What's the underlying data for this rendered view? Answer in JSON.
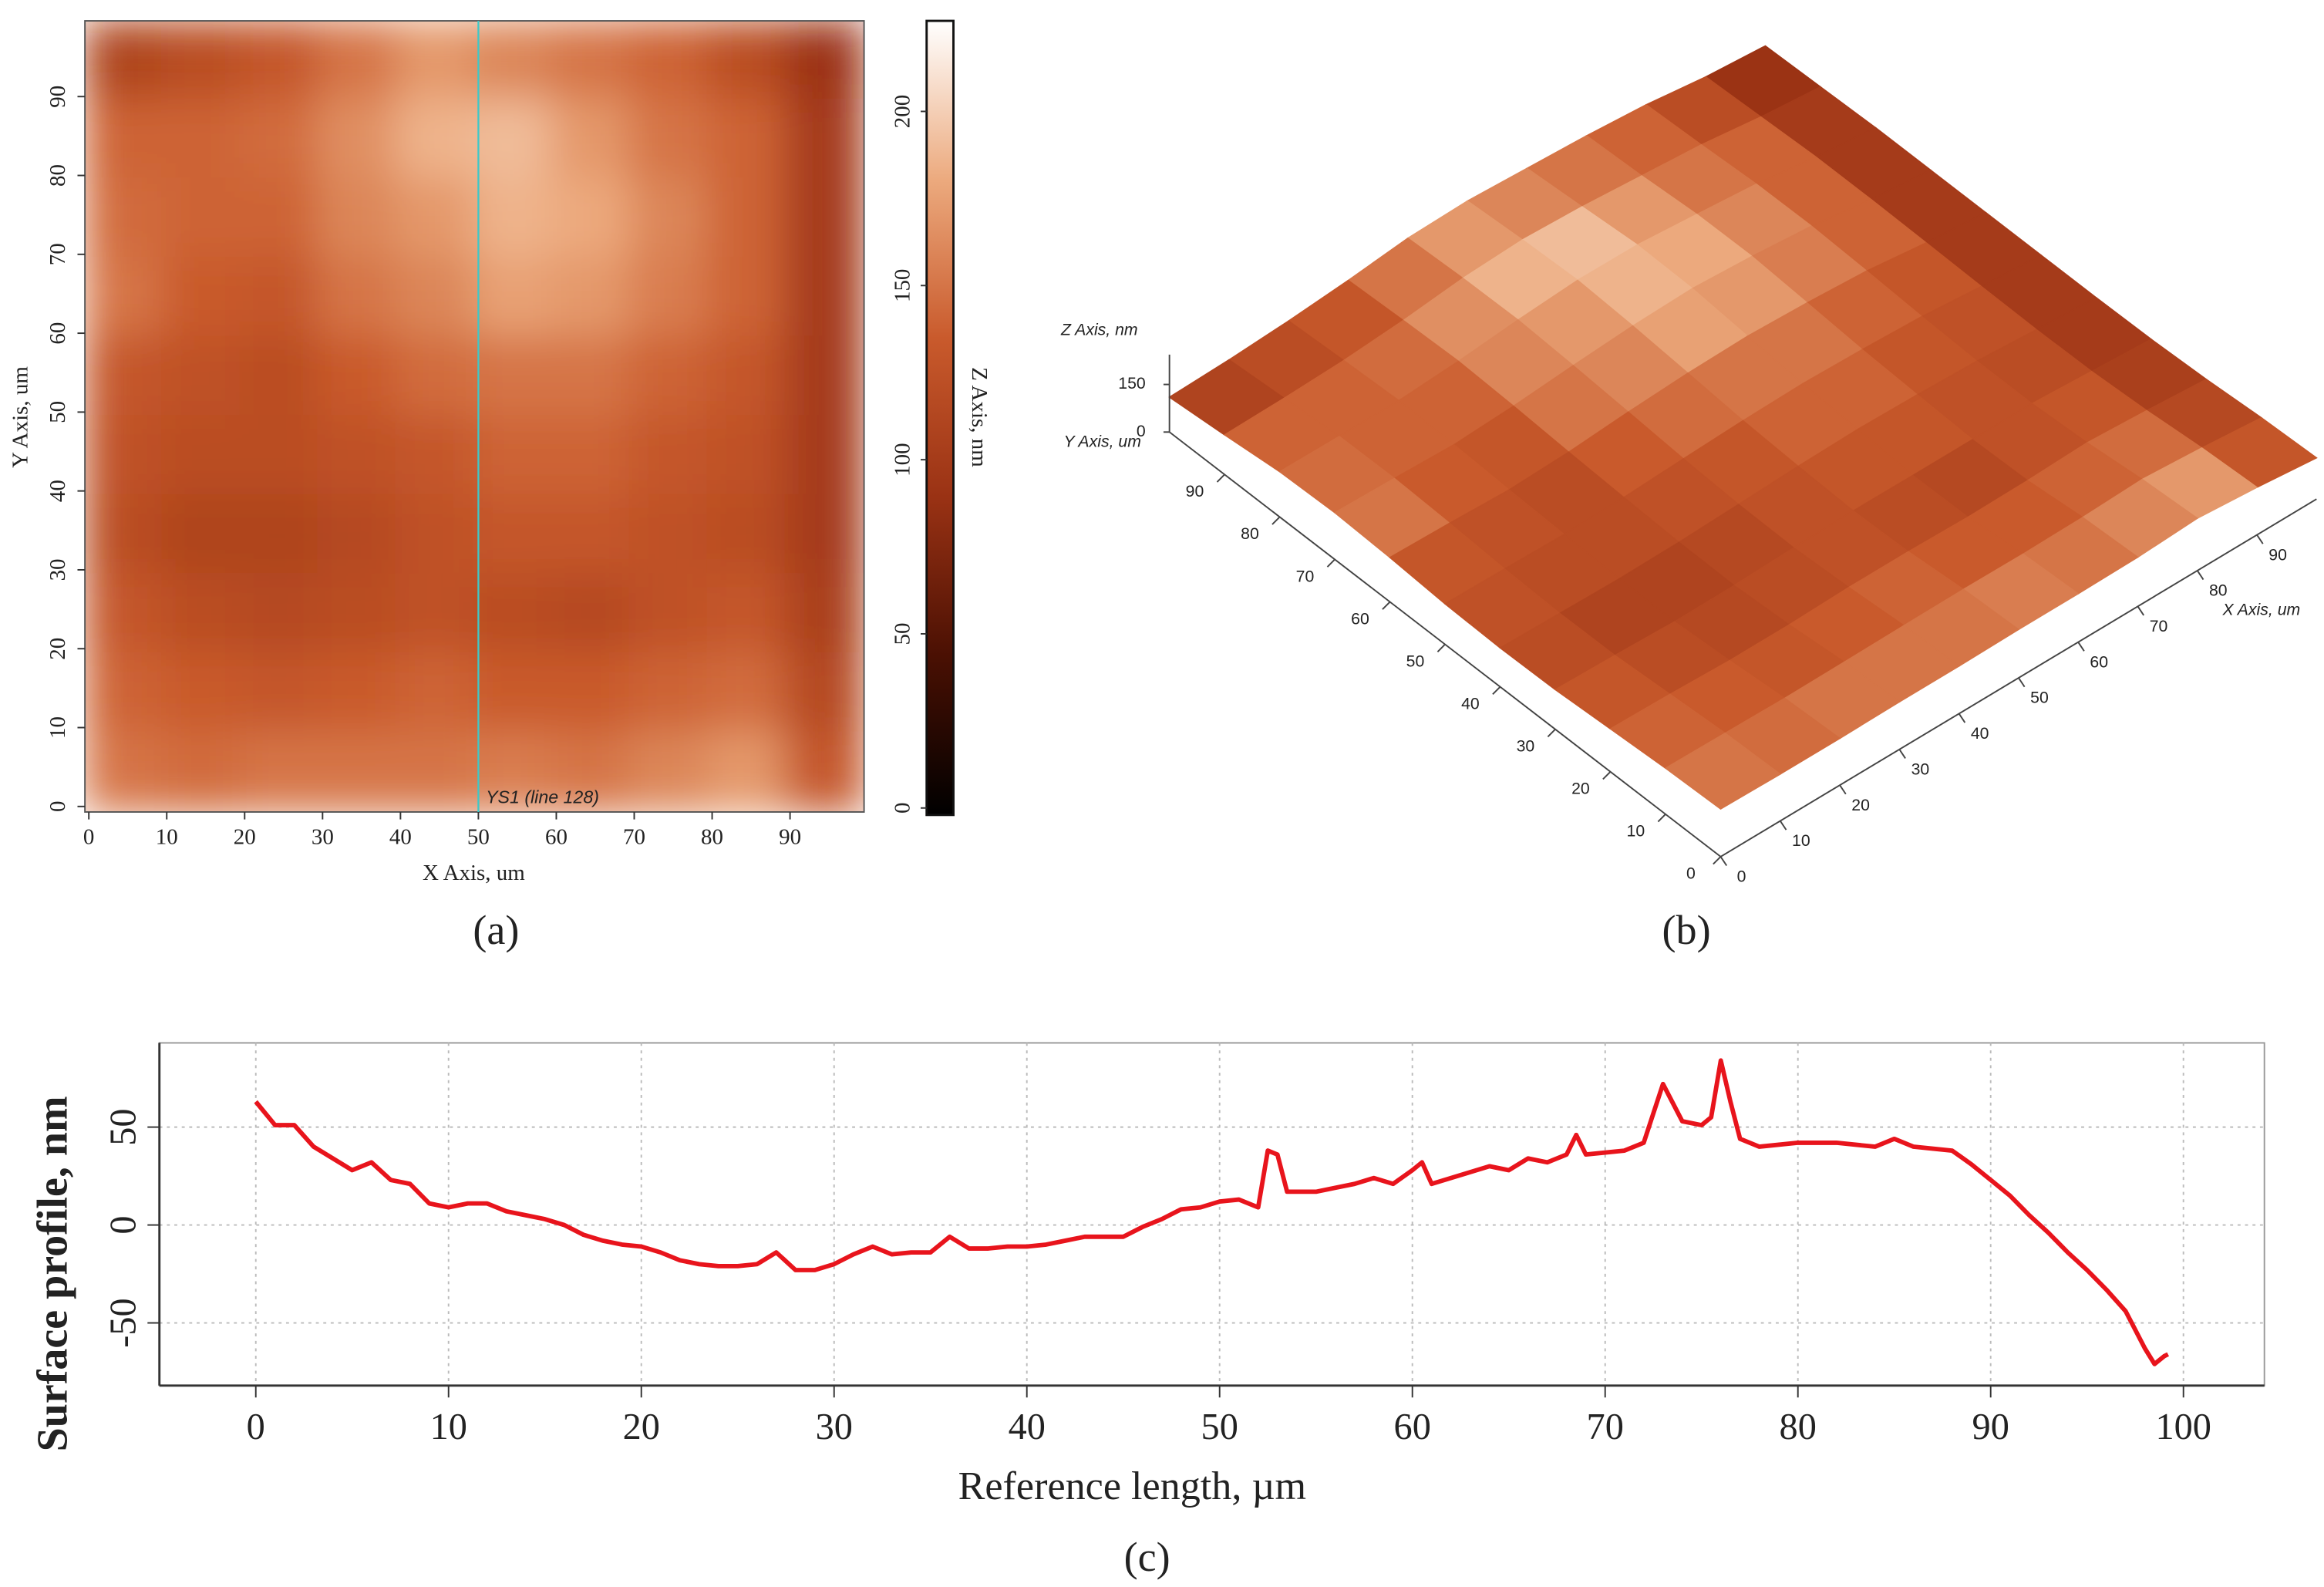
{
  "chart_data": [
    {
      "type": "heatmap",
      "xlabel": "X Axis, um",
      "ylabel": "Y Axis, um",
      "xlim": [
        -0.5,
        99.5
      ],
      "ylim": [
        -0.7,
        99.6
      ],
      "xticks": [
        0,
        10,
        20,
        30,
        40,
        50,
        60,
        70,
        80,
        90
      ],
      "yticks": [
        0,
        10,
        20,
        30,
        40,
        50,
        60,
        70,
        80,
        90
      ],
      "z": [
        [
          110,
          120,
          130,
          150,
          170,
          160,
          150,
          140,
          120,
          90
        ],
        [
          140,
          140,
          145,
          165,
          185,
          190,
          170,
          150,
          140,
          100
        ],
        [
          145,
          140,
          140,
          160,
          170,
          185,
          180,
          160,
          140,
          100
        ],
        [
          150,
          135,
          130,
          150,
          160,
          175,
          170,
          155,
          140,
          100
        ],
        [
          130,
          125,
          120,
          135,
          145,
          150,
          150,
          140,
          130,
          100
        ],
        [
          125,
          120,
          120,
          125,
          130,
          140,
          140,
          130,
          125,
          100
        ],
        [
          120,
          110,
          110,
          115,
          125,
          130,
          130,
          125,
          120,
          100
        ],
        [
          130,
          120,
          115,
          120,
          125,
          120,
          115,
          125,
          130,
          105
        ],
        [
          140,
          135,
          130,
          135,
          140,
          135,
          135,
          140,
          145,
          115
        ],
        [
          150,
          145,
          150,
          150,
          150,
          155,
          150,
          160,
          170,
          130
        ]
      ],
      "colorbar_label": "Z Axis, nm",
      "zlim": [
        -2,
        226
      ],
      "zticks": [
        0,
        50,
        100,
        150,
        200
      ],
      "colormap": [
        "#000000",
        "#4a1003",
        "#9a3214",
        "#c95a2c",
        "#ecaa7e",
        "#ffffff"
      ],
      "cursor_x": 50,
      "cursor_color": "#3ec8c8",
      "annotation": "YS1 (line 128)",
      "panel_label": "(a)"
    },
    {
      "type": "surface3d",
      "xlabel": "X Axis, um",
      "ylabel": "Y Axis, um",
      "zlabel": "Z Axis, nm",
      "xlim": [
        0,
        100
      ],
      "ylim": [
        0,
        100
      ],
      "xticks": [
        0,
        10,
        20,
        30,
        40,
        50,
        60,
        70,
        80,
        90
      ],
      "yticks": [
        0,
        10,
        20,
        30,
        40,
        50,
        60,
        70,
        80,
        90
      ],
      "zticks": [
        0,
        150
      ],
      "panel_label": "(b)"
    },
    {
      "type": "line",
      "xlabel": "Reference length, µm",
      "ylabel": "Surface profile, nm",
      "x": [
        0,
        1,
        2,
        3,
        4,
        5,
        6,
        7,
        8,
        9,
        10,
        11,
        12,
        13,
        14,
        15,
        16,
        17,
        18,
        19,
        20,
        21,
        22,
        23,
        24,
        25,
        26,
        27,
        28,
        29,
        30,
        31,
        32,
        33,
        34,
        35,
        36,
        37,
        38,
        39,
        40,
        41,
        42,
        43,
        44,
        45,
        46,
        47,
        48,
        49,
        50,
        51,
        52,
        52.5,
        53,
        53.5,
        54,
        55,
        56,
        57,
        58,
        59,
        60,
        60.5,
        61,
        62,
        63,
        64,
        65,
        66,
        67,
        68,
        68.5,
        69,
        70,
        71,
        72,
        73,
        74,
        75,
        75.5,
        76,
        76.5,
        77,
        78,
        80,
        82,
        84,
        85,
        86,
        88,
        89,
        90,
        91,
        92,
        93,
        94,
        95,
        96,
        97,
        98,
        98.5,
        99,
        99.2
      ],
      "values": [
        63,
        51,
        51,
        40,
        34,
        28,
        32,
        23,
        21,
        11,
        9,
        11,
        11,
        7,
        5,
        3,
        0,
        -5,
        -8,
        -10,
        -11,
        -14,
        -18,
        -20,
        -21,
        -21,
        -20,
        -14,
        -23,
        -23,
        -20,
        -15,
        -11,
        -15,
        -14,
        -14,
        -6,
        -12,
        -12,
        -11,
        -11,
        -10,
        -8,
        -6,
        -6,
        -6,
        -1,
        3,
        8,
        9,
        12,
        13,
        9,
        38,
        36,
        17,
        17,
        17,
        19,
        21,
        24,
        21,
        28,
        32,
        21,
        24,
        27,
        30,
        28,
        34,
        32,
        36,
        46,
        36,
        37,
        38,
        42,
        72,
        53,
        51,
        55,
        84,
        63,
        44,
        40,
        42,
        42,
        40,
        44,
        40,
        38,
        31,
        23,
        15,
        5,
        -4,
        -14,
        -23,
        -33,
        -44,
        -63,
        -71,
        -67,
        -66
      ],
      "color": "#e8141c",
      "xlim": [
        -5,
        104.2
      ],
      "ylim": [
        -82,
        93
      ],
      "xticks": [
        0,
        10,
        20,
        30,
        40,
        50,
        60,
        70,
        80,
        90,
        100
      ],
      "yticks": [
        -50,
        0,
        50
      ],
      "grid": true,
      "panel_label": "(c)"
    }
  ]
}
